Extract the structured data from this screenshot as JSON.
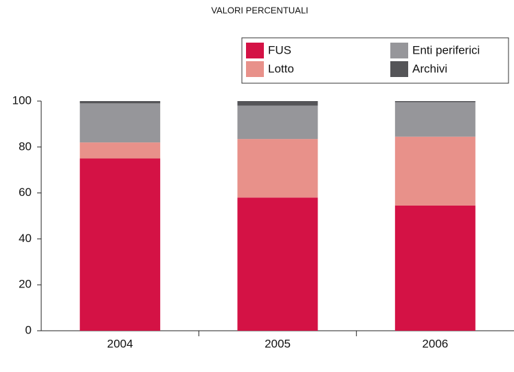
{
  "chart_data": {
    "type": "stacked_bar",
    "title": "VALORI PERCENTUALI",
    "categories": [
      "2004",
      "2005",
      "2006"
    ],
    "series": [
      {
        "name": "FUS",
        "color": "#d41245",
        "values": [
          75,
          58,
          54.5
        ]
      },
      {
        "name": "Lotto",
        "color": "#e8918a",
        "values": [
          7,
          25.5,
          30
        ]
      },
      {
        "name": "Enti periferici",
        "color": "#96969a",
        "values": [
          17,
          14.5,
          15
        ]
      },
      {
        "name": "Archivi",
        "color": "#555558",
        "values": [
          1,
          2,
          0.5
        ]
      }
    ],
    "ylim": [
      0,
      100
    ],
    "yticks": [
      0,
      20,
      40,
      60,
      80,
      100
    ],
    "grid": false,
    "legend": "upper right"
  }
}
